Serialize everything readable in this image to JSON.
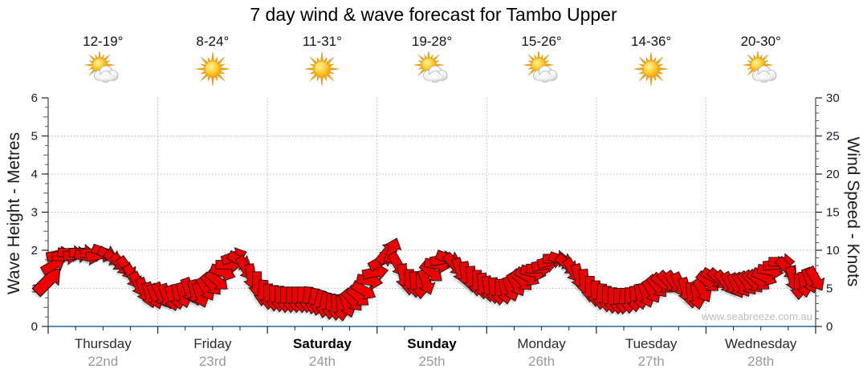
{
  "title": "7 day wind & wave forecast for Tambo Upper",
  "watermark": "www.seabreeze.com.au",
  "days": [
    {
      "name": "Thursday",
      "date": "22nd",
      "temps": "12-19°",
      "condition": "partly-cloudy",
      "weekend": false
    },
    {
      "name": "Friday",
      "date": "23rd",
      "temps": "8-24°",
      "condition": "sunny",
      "weekend": false
    },
    {
      "name": "Saturday",
      "date": "24th",
      "temps": "11-31°",
      "condition": "sunny",
      "weekend": true
    },
    {
      "name": "Sunday",
      "date": "25th",
      "temps": "19-28°",
      "condition": "partly-cloudy",
      "weekend": true
    },
    {
      "name": "Monday",
      "date": "26th",
      "temps": "15-26°",
      "condition": "partly-cloudy",
      "weekend": false
    },
    {
      "name": "Tuesday",
      "date": "27th",
      "temps": "14-36°",
      "condition": "sunny",
      "weekend": false
    },
    {
      "name": "Wednesday",
      "date": "28th",
      "temps": "20-30°",
      "condition": "partly-cloudy",
      "weekend": false
    }
  ],
  "chart_data": {
    "type": "line",
    "subtype": "wind-direction-arrows",
    "title": "7 day wind & wave forecast for Tambo Upper",
    "left_axis": {
      "label": "Wave Height - Metres",
      "min": 0,
      "max": 6,
      "major_step": 1,
      "minor_step": 0.25
    },
    "right_axis": {
      "label": "Wind Speed - Knots",
      "min": 0,
      "max": 30,
      "major_step": 5,
      "minor_step": 1
    },
    "x_axis": {
      "num_days": 7,
      "minor_ticks_per_day": 4,
      "day_gridlines": true
    },
    "grid": {
      "horizontal_dotted_at": [
        1,
        2,
        3,
        4,
        5
      ],
      "vertical_dotted_at_day_boundaries": true
    },
    "series": [
      {
        "name": "Wind speed and direction",
        "color": "#ee0000",
        "units": "knots",
        "sample_note": "samples evenly spaced over the 7 days; dir_deg: 0 = arrow points right, 90 = points down, negative = points up-right",
        "knots": [
          6.0,
          8.1,
          9.4,
          9.2,
          9.6,
          9.4,
          9.7,
          9.2,
          9.6,
          9.4,
          9.7,
          9.2,
          8.6,
          8.1,
          7.6,
          6.5,
          5.5,
          4.7,
          4.1,
          3.9,
          4.1,
          3.9,
          3.7,
          3.9,
          4.1,
          4.7,
          4.4,
          4.1,
          4.9,
          5.5,
          6.0,
          7.1,
          8.1,
          9.2,
          8.6,
          7.6,
          6.5,
          5.5,
          4.4,
          3.9,
          3.7,
          3.6,
          3.5,
          3.5,
          3.5,
          3.5,
          3.5,
          3.3,
          3.1,
          2.8,
          2.6,
          2.5,
          2.4,
          2.8,
          3.4,
          3.9,
          4.7,
          6.0,
          7.1,
          8.6,
          9.7,
          10.0,
          8.1,
          6.5,
          5.8,
          5.5,
          5.3,
          5.8,
          7.1,
          8.1,
          8.8,
          8.9,
          8.1,
          7.3,
          6.8,
          6.2,
          5.7,
          5.3,
          4.9,
          4.7,
          4.5,
          4.6,
          4.9,
          5.5,
          6.0,
          6.5,
          7.1,
          7.6,
          8.1,
          8.6,
          8.9,
          8.7,
          8.1,
          7.3,
          6.5,
          5.8,
          4.9,
          4.3,
          3.9,
          3.6,
          3.4,
          3.3,
          3.3,
          3.4,
          3.6,
          3.9,
          4.1,
          4.6,
          5.2,
          5.6,
          5.8,
          5.7,
          5.4,
          4.7,
          4.1,
          3.9,
          4.7,
          5.8,
          6.4,
          6.2,
          5.8,
          5.5,
          5.3,
          5.4,
          5.6,
          5.8,
          6.0,
          6.5,
          7.3,
          8.1,
          8.5,
          7.6,
          6.2,
          5.2,
          5.5,
          6.0,
          6.2
        ],
        "dir_deg": [
          -45,
          -30,
          -10,
          0,
          5,
          -5,
          0,
          10,
          0,
          -10,
          20,
          30,
          40,
          50,
          55,
          60,
          65,
          70,
          75,
          70,
          65,
          70,
          75,
          80,
          75,
          70,
          75,
          70,
          60,
          50,
          40,
          20,
          0,
          -20,
          30,
          60,
          80,
          90,
          95,
          90,
          90,
          90,
          90,
          90,
          90,
          90,
          95,
          100,
          105,
          100,
          95,
          90,
          85,
          70,
          50,
          40,
          30,
          10,
          -10,
          -30,
          -50,
          -70,
          60,
          80,
          90,
          85,
          90,
          70,
          40,
          10,
          -10,
          20,
          50,
          70,
          80,
          85,
          90,
          85,
          80,
          85,
          90,
          80,
          70,
          60,
          45,
          30,
          15,
          0,
          -10,
          -15,
          0,
          20,
          40,
          60,
          75,
          85,
          90,
          90,
          95,
          90,
          90,
          90,
          95,
          90,
          85,
          80,
          70,
          60,
          50,
          40,
          45,
          55,
          65,
          75,
          85,
          80,
          60,
          40,
          30,
          40,
          50,
          60,
          65,
          60,
          55,
          50,
          40,
          25,
          10,
          -5,
          0,
          45,
          75,
          90,
          80,
          70,
          60
        ]
      }
    ]
  },
  "colors": {
    "arrow_fill": "#ee0000",
    "arrow_outline": "#1a1a1a",
    "bottom_axis": "#2a6496",
    "gridline": "#b5b5b5",
    "tick_number": "#16163f",
    "date_text": "#9a9a9a",
    "watermark": "#bdbdbd"
  }
}
